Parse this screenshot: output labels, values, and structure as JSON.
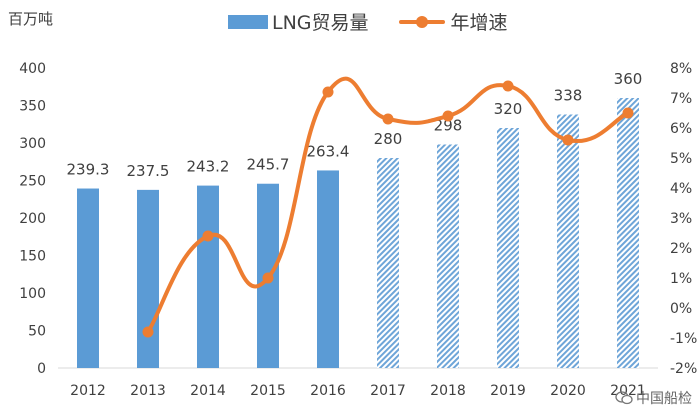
{
  "chart_data": {
    "type": "bar",
    "categories": [
      "2012",
      "2013",
      "2014",
      "2015",
      "2016",
      "2017",
      "2018",
      "2019",
      "2020",
      "2021"
    ],
    "series": [
      {
        "name": "LNG贸易量",
        "type": "bar",
        "axis": "left",
        "values": [
          239.3,
          237.5,
          243.2,
          245.7,
          263.4,
          280,
          298,
          320,
          338,
          360
        ],
        "labels": [
          "239.3",
          "237.5",
          "243.2",
          "245.7",
          "263.4",
          "280",
          "298",
          "320",
          "338",
          "360"
        ],
        "forecast_from_index": 5
      },
      {
        "name": "年增速",
        "type": "line",
        "axis": "right",
        "x": [
          "2013",
          "2014",
          "2015",
          "2016",
          "2017",
          "2018",
          "2019",
          "2020",
          "2021"
        ],
        "values": [
          -0.8,
          2.4,
          1.0,
          7.2,
          6.3,
          6.4,
          7.4,
          5.6,
          6.5
        ]
      }
    ],
    "ylabel": "百万吨",
    "ylim": [
      0,
      400
    ],
    "yticks": [
      0,
      50,
      100,
      150,
      200,
      250,
      300,
      350,
      400
    ],
    "y2lim": [
      -2,
      8
    ],
    "y2ticks": [
      "-2%",
      "-1%",
      "0%",
      "1%",
      "2%",
      "3%",
      "4%",
      "5%",
      "6%",
      "7%",
      "8%"
    ],
    "legend_position": "top",
    "grid": false,
    "colors": {
      "bar": "#5b9bd5",
      "forecast_hatch": "#5b9bd5",
      "line": "#ed7d31",
      "text": "#404040"
    }
  },
  "watermark": {
    "text": "中国船检",
    "icon": "chat-bubble-icon"
  }
}
